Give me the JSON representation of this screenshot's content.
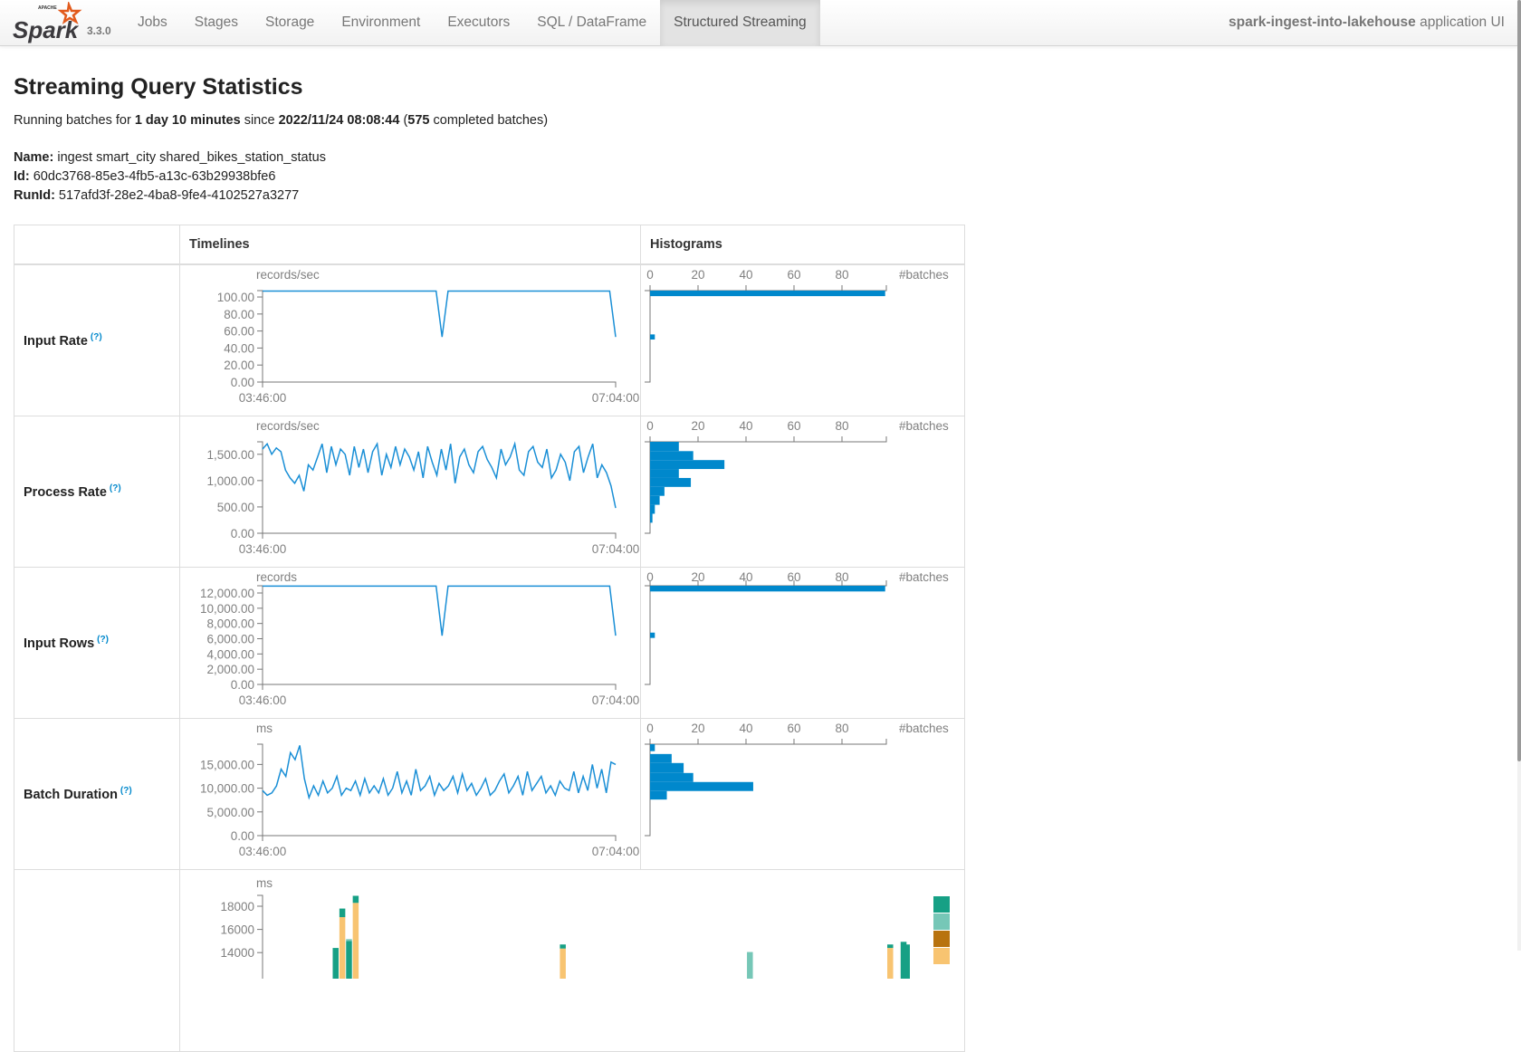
{
  "navbar": {
    "version": "3.3.0",
    "logo_text": "Spark",
    "items": [
      "Jobs",
      "Stages",
      "Storage",
      "Environment",
      "Executors",
      "SQL / DataFrame",
      "Structured Streaming"
    ],
    "active": "Structured Streaming",
    "app_name": "spark-ingest-into-lakehouse",
    "app_suffix": " application UI"
  },
  "header": {
    "title": "Streaming Query Statistics",
    "running_prefix": "Running batches for ",
    "duration": "1 day 10 minutes",
    "since_label": " since ",
    "since": "2022/11/24 08:08:44",
    "open_paren": " (",
    "completed": "575",
    "completed_suffix": " completed batches)"
  },
  "query": {
    "name_label": "Name:",
    "name": " ingest smart_city shared_bikes_station_status",
    "id_label": "Id:",
    "id": " 60dc3768-85e3-4fb5-a13c-63b29938bfe6",
    "runid_label": "RunId:",
    "runid": " 517afd3f-28e2-4ba8-9fe4-4102527a3277"
  },
  "table": {
    "headers": [
      "",
      "Timelines",
      "Histograms"
    ],
    "help_mark": "(?)"
  },
  "colors": {
    "line": "#1a8fd6",
    "bar": "#0088cc",
    "stack": [
      "#16a085",
      "#76c7b7",
      "#b8730f",
      "#f8c471"
    ]
  },
  "chart_data": [
    {
      "type": "line",
      "metric": "Input Rate",
      "ylabel": "records/sec",
      "x_ticks": [
        "03:46:00",
        "07:04:00"
      ],
      "ylim": [
        0,
        107.5
      ],
      "y_ticks": [
        {
          "v": 0,
          "l": "0.00"
        },
        {
          "v": 20,
          "l": "20.00"
        },
        {
          "v": 40,
          "l": "40.00"
        },
        {
          "v": 60,
          "l": "60.00"
        },
        {
          "v": 80,
          "l": "80.00"
        },
        {
          "v": 100,
          "l": "100.00"
        }
      ],
      "values": [
        107,
        107,
        107,
        107,
        107,
        107,
        107,
        107,
        107,
        107,
        107,
        107,
        107,
        107,
        107,
        107,
        107,
        107,
        107,
        107,
        107,
        107,
        107,
        107,
        107,
        107,
        107,
        107,
        107,
        107,
        53,
        107,
        107,
        107,
        107,
        107,
        107,
        107,
        107,
        107,
        107,
        107,
        107,
        107,
        107,
        107,
        107,
        107,
        107,
        107,
        107,
        107,
        107,
        107,
        107,
        107,
        107,
        107,
        107,
        53
      ],
      "histogram": {
        "xlabel": "#batches",
        "x_ticks": [
          0,
          20,
          40,
          60,
          80
        ],
        "bins": [
          [
            101,
            107.5,
            98
          ],
          [
            50,
            56,
            2
          ]
        ]
      }
    },
    {
      "type": "line",
      "metric": "Process Rate",
      "ylabel": "records/sec",
      "x_ticks": [
        "03:46:00",
        "07:04:00"
      ],
      "ylim": [
        0,
        1737
      ],
      "y_ticks": [
        {
          "v": 0,
          "l": "0.00"
        },
        {
          "v": 500,
          "l": "500.00"
        },
        {
          "v": 1000,
          "l": "1,000.00"
        },
        {
          "v": 1500,
          "l": "1,500.00"
        }
      ],
      "values": [
        1600,
        1700,
        1500,
        1620,
        1550,
        1200,
        1050,
        950,
        1100,
        800,
        1300,
        1200,
        1450,
        1700,
        1150,
        1650,
        1300,
        1600,
        1500,
        1100,
        1650,
        1250,
        1600,
        1150,
        1550,
        1700,
        1100,
        1500,
        1250,
        1650,
        1300,
        1600,
        1450,
        1200,
        1550,
        1050,
        1650,
        1350,
        1100,
        1600,
        1200,
        1700,
        950,
        1450,
        1600,
        1300,
        1150,
        1550,
        1650,
        1400,
        1250,
        1050,
        1600,
        1300,
        1450,
        1700,
        1200,
        1100,
        1550,
        1650,
        1350,
        1250,
        1600,
        1050,
        1200,
        1500,
        1350,
        1000,
        1550,
        1650,
        1150,
        1450,
        1700,
        1050,
        1300,
        1150,
        900,
        480
      ],
      "histogram": {
        "xlabel": "#batches",
        "x_ticks": [
          0,
          20,
          40,
          60,
          80
        ],
        "bins": [
          [
            1560,
            1737,
            12
          ],
          [
            1390,
            1560,
            18
          ],
          [
            1220,
            1390,
            31
          ],
          [
            1050,
            1220,
            12
          ],
          [
            880,
            1050,
            17
          ],
          [
            710,
            880,
            6
          ],
          [
            540,
            710,
            4
          ],
          [
            370,
            540,
            2
          ],
          [
            200,
            370,
            1
          ]
        ]
      }
    },
    {
      "type": "line",
      "metric": "Input Rows",
      "ylabel": "records",
      "x_ticks": [
        "03:46:00",
        "07:04:00"
      ],
      "ylim": [
        0,
        12950
      ],
      "y_ticks": [
        {
          "v": 0,
          "l": "0.00"
        },
        {
          "v": 2000,
          "l": "2,000.00"
        },
        {
          "v": 4000,
          "l": "4,000.00"
        },
        {
          "v": 6000,
          "l": "6,000.00"
        },
        {
          "v": 8000,
          "l": "8,000.00"
        },
        {
          "v": 10000,
          "l": "10,000.00"
        },
        {
          "v": 12000,
          "l": "12,000.00"
        }
      ],
      "values": [
        12900,
        12900,
        12900,
        12900,
        12900,
        12900,
        12900,
        12900,
        12900,
        12900,
        12900,
        12900,
        12900,
        12900,
        12900,
        12900,
        12900,
        12900,
        12900,
        12900,
        12900,
        12900,
        12900,
        12900,
        12900,
        12900,
        12900,
        12900,
        12900,
        12900,
        6400,
        12900,
        12900,
        12900,
        12900,
        12900,
        12900,
        12900,
        12900,
        12900,
        12900,
        12900,
        12900,
        12900,
        12900,
        12900,
        12900,
        12900,
        12900,
        12900,
        12900,
        12900,
        12900,
        12900,
        12900,
        12900,
        12900,
        12900,
        12900,
        6400
      ],
      "histogram": {
        "xlabel": "#batches",
        "x_ticks": [
          0,
          20,
          40,
          60,
          80
        ],
        "bins": [
          [
            12200,
            12950,
            98
          ],
          [
            6100,
            6800,
            2
          ]
        ]
      }
    },
    {
      "type": "line",
      "metric": "Batch Duration",
      "ylabel": "ms",
      "x_ticks": [
        "03:46:00",
        "07:04:00"
      ],
      "ylim": [
        0,
        19270
      ],
      "y_ticks": [
        {
          "v": 0,
          "l": "0.00"
        },
        {
          "v": 5000,
          "l": "5,000.00"
        },
        {
          "v": 10000,
          "l": "10,000.00"
        },
        {
          "v": 15000,
          "l": "15,000.00"
        }
      ],
      "values": [
        9500,
        8500,
        9000,
        10500,
        14000,
        12500,
        17500,
        16000,
        19000,
        12000,
        8000,
        10500,
        8500,
        11500,
        9000,
        10000,
        12500,
        8500,
        10000,
        9500,
        11500,
        8500,
        12000,
        9000,
        10500,
        9000,
        12000,
        8500,
        10000,
        13500,
        9000,
        11500,
        8500,
        14000,
        9500,
        10500,
        12500,
        8500,
        11000,
        9500,
        10500,
        12500,
        9000,
        13000,
        9500,
        11000,
        8500,
        10000,
        12000,
        8500,
        9500,
        11500,
        13000,
        9000,
        10500,
        12500,
        8500,
        13500,
        9500,
        11000,
        12500,
        9000,
        10500,
        8500,
        11500,
        10000,
        9500,
        13500,
        9000,
        12500,
        9500,
        15000,
        10000,
        14000,
        9000,
        15500,
        15000
      ],
      "histogram": {
        "xlabel": "#batches",
        "x_ticks": [
          0,
          20,
          40,
          60,
          80
        ],
        "bins": [
          [
            17800,
            19270,
            2
          ],
          [
            15300,
            17200,
            9
          ],
          [
            13200,
            15300,
            14
          ],
          [
            11300,
            13200,
            18
          ],
          [
            9400,
            11300,
            43
          ],
          [
            7600,
            9400,
            7
          ]
        ]
      }
    }
  ],
  "operation_duration": {
    "type": "stacked-bar",
    "ylabel": "ms",
    "y_ticks": [
      {
        "v": 14000,
        "l": "14000"
      },
      {
        "v": 16000,
        "l": "16000"
      },
      {
        "v": 18000,
        "l": "18000"
      }
    ],
    "bars": [
      {
        "time": "04:07",
        "segments": [
          [
            0,
            14400,
            0
          ]
        ]
      },
      {
        "time": "04:09",
        "segments": [
          [
            0,
            17060,
            3
          ],
          [
            17060,
            17800,
            0
          ]
        ]
      },
      {
        "time": "04:11",
        "segments": [
          [
            0,
            15000,
            0
          ],
          [
            15000,
            15160,
            1
          ]
        ]
      },
      {
        "time": "04:13",
        "segments": [
          [
            0,
            18290,
            3
          ],
          [
            18290,
            18900,
            0
          ]
        ]
      },
      {
        "time": "05:15",
        "segments": [
          [
            0,
            14350,
            3
          ],
          [
            14350,
            14700,
            0
          ]
        ]
      },
      {
        "time": "06:11",
        "segments": [
          [
            0,
            14050,
            1
          ]
        ]
      },
      {
        "time": "06:53",
        "segments": [
          [
            0,
            14400,
            3
          ],
          [
            14400,
            14700,
            0
          ]
        ]
      },
      {
        "time": "06:57",
        "segments": [
          [
            0,
            14930,
            0
          ]
        ]
      },
      {
        "time": "06:58",
        "segments": [
          [
            0,
            14700,
            0
          ]
        ]
      }
    ]
  }
}
